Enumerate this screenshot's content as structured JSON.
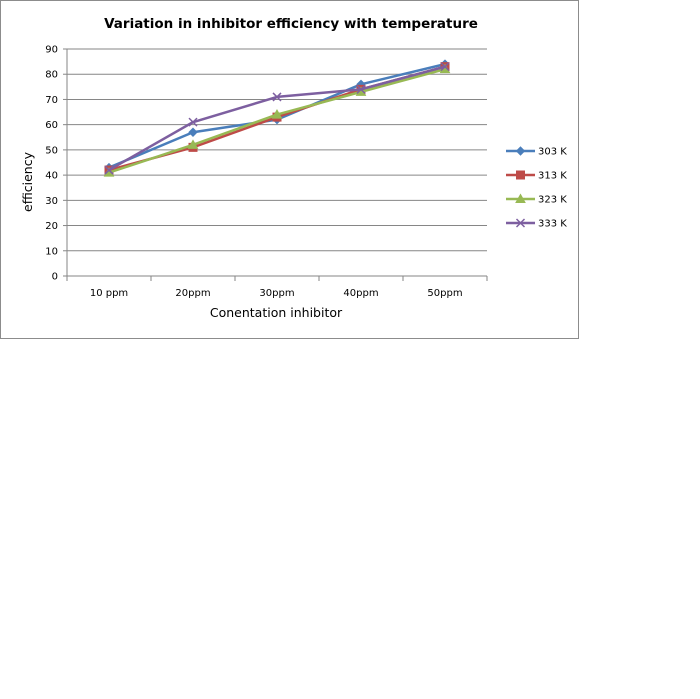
{
  "chart_data": {
    "type": "line",
    "title": "Variation in inhibitor efficiency with temperature",
    "xlabel": "Conentation  inhibitor",
    "ylabel": "efficiency",
    "categories": [
      "10 ppm",
      "20ppm",
      "30ppm",
      "40ppm",
      "50ppm"
    ],
    "ylim": [
      0,
      90
    ],
    "yticks": [
      0,
      10,
      20,
      30,
      40,
      50,
      60,
      70,
      80,
      90
    ],
    "grid": true,
    "legend_position": "right",
    "series": [
      {
        "name": "303 K",
        "values": [
          43,
          57,
          62,
          76,
          84
        ],
        "color": "#4a7ebb",
        "marker": "diamond"
      },
      {
        "name": "313 K",
        "values": [
          42,
          51,
          63,
          74,
          83
        ],
        "color": "#be4b48",
        "marker": "square"
      },
      {
        "name": "323 K",
        "values": [
          41,
          52,
          64,
          73,
          82
        ],
        "color": "#98b954",
        "marker": "triangle"
      },
      {
        "name": "333 K",
        "values": [
          42,
          61,
          71,
          74,
          83
        ],
        "color": "#7d5fa0",
        "marker": "x"
      }
    ]
  }
}
